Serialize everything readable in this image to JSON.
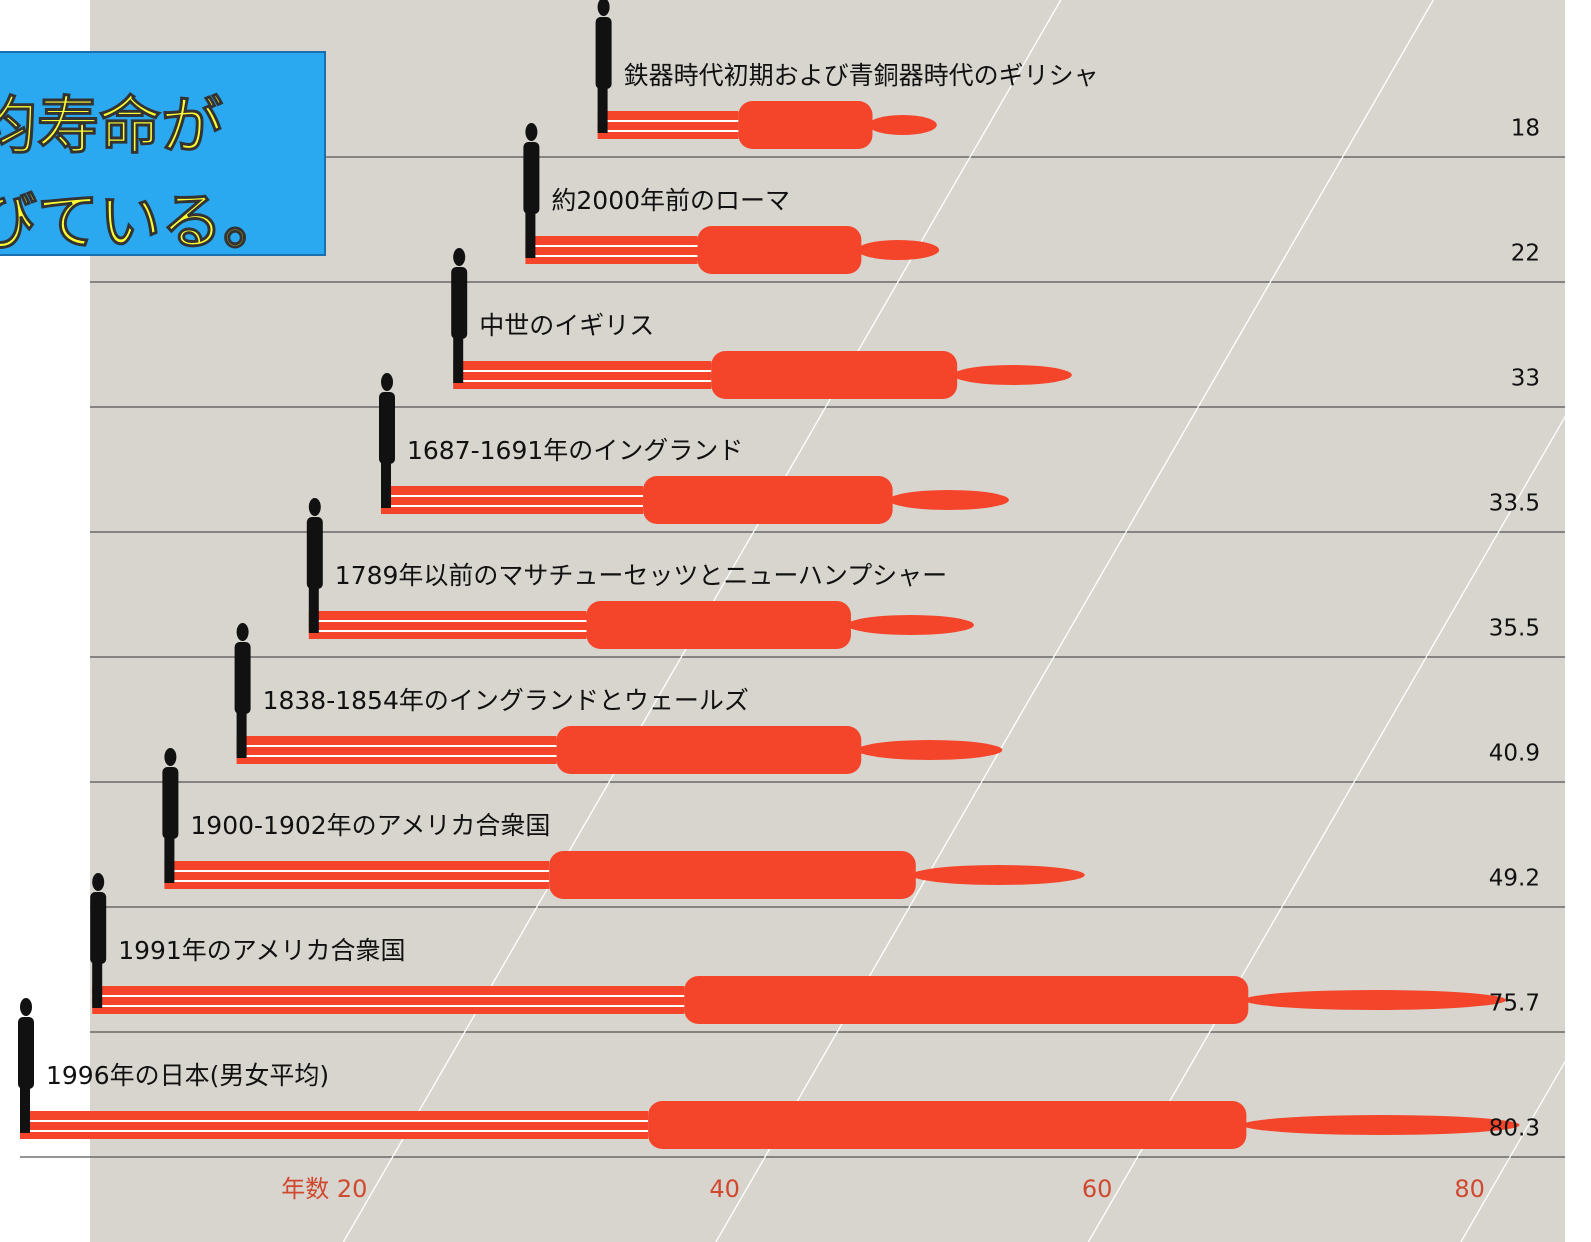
{
  "chart_data": {
    "type": "bar",
    "title_lines": [
      "均寿命が",
      "びている。"
    ],
    "categories": [
      "鉄器時代初期および青銅器時代のギリシャ",
      "約2000年前のローマ",
      "中世のイギリス",
      "1687-1691年のイングランド",
      "1789年以前のマサチューセッツとニューハンプシャー",
      "1838-1854年のイングランドとウェールズ",
      "1900-1902年のアメリカ合衆国",
      "1991年のアメリカ合衆国",
      "1996年の日本(男女平均)"
    ],
    "values": [
      18,
      22,
      33,
      33.5,
      35.5,
      40.9,
      49.2,
      75.7,
      80.3
    ],
    "color": "#f4452b",
    "xlim": [
      0,
      80
    ],
    "xticks": [
      {
        "value": 20,
        "label": "年数 20"
      },
      40,
      60,
      80
    ]
  }
}
